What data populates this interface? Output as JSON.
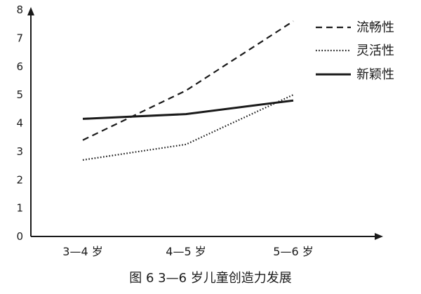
{
  "caption": "图 6   3—6 岁儿童创造力发展",
  "chart_data": {
    "type": "line",
    "title": "图 6   3—6 岁儿童创造力发展",
    "xlabel": "",
    "ylabel": "",
    "categories": [
      "3—4 岁",
      "4—5 岁",
      "5—6 岁"
    ],
    "ylim": [
      0,
      8
    ],
    "yticks": [
      0,
      1,
      2,
      3,
      4,
      5,
      6,
      7,
      8
    ],
    "grid": false,
    "legend_position": "top-right",
    "series": [
      {
        "name": "流畅性",
        "values": [
          3.4,
          5.15,
          7.6
        ],
        "style": "dashed",
        "color": "#1a1a1a"
      },
      {
        "name": "灵活性",
        "values": [
          2.7,
          3.25,
          5.0
        ],
        "style": "dotted",
        "color": "#1a1a1a"
      },
      {
        "name": "新颖性",
        "values": [
          4.15,
          4.32,
          4.8
        ],
        "style": "solid",
        "color": "#1a1a1a"
      }
    ]
  }
}
